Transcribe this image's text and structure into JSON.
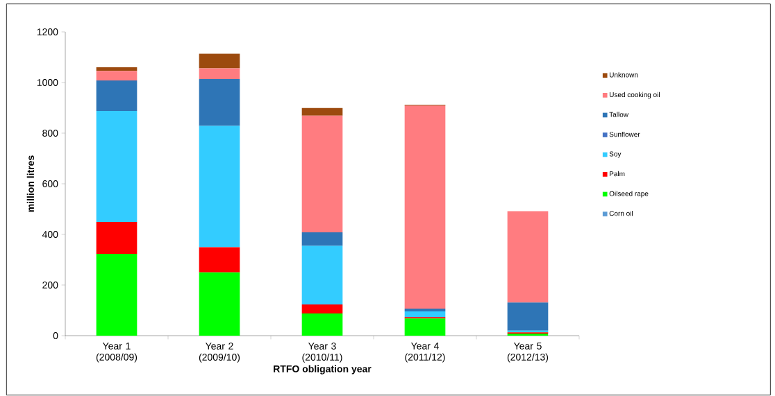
{
  "chart_data": {
    "type": "bar",
    "stacked": true,
    "xlabel": "RTFO obligation year",
    "ylabel": "million litres",
    "categories": [
      "Year 1 (2008/09)",
      "Year 2 (2009/10)",
      "Year 3 (2010/11)",
      "Year 4 (2011/12)",
      "Year 5 (2012/13)"
    ],
    "ylim": [
      0,
      1200
    ],
    "yticks": [
      0,
      200,
      400,
      600,
      800,
      1000,
      1200
    ],
    "legend": "right",
    "grid": false,
    "series": [
      {
        "name": "Corn oil",
        "color": "#5b9bd5",
        "values": [
          0,
          0,
          0,
          0,
          0
        ]
      },
      {
        "name": "Oilseed rape",
        "color": "#00ff00",
        "values": [
          323,
          250,
          88,
          68,
          8
        ]
      },
      {
        "name": "Palm",
        "color": "#ff0000",
        "values": [
          126,
          99,
          35,
          5,
          5
        ]
      },
      {
        "name": "Soy",
        "color": "#33ccff",
        "values": [
          439,
          480,
          232,
          23,
          7
        ]
      },
      {
        "name": "Sunflower",
        "color": "#4472c4",
        "values": [
          0,
          0,
          0,
          0,
          0
        ]
      },
      {
        "name": "Tallow",
        "color": "#2e75b6",
        "values": [
          120,
          185,
          53,
          11,
          111
        ]
      },
      {
        "name": "Used cooking oil",
        "color": "#ff7c80",
        "values": [
          38,
          42,
          461,
          802,
          361
        ]
      },
      {
        "name": "Unknown",
        "color": "#9c4a0e",
        "values": [
          14,
          58,
          30,
          3,
          0
        ]
      }
    ]
  }
}
